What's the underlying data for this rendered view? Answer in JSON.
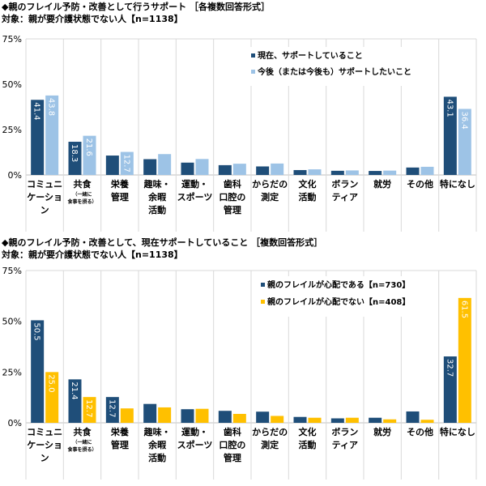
{
  "chart_data": [
    {
      "type": "bar",
      "title": "◆親のフレイル予防・改善として行うサポート ［各複数回答形式］",
      "subtitle": "対象：親が要介護状態でない人【n=1138】",
      "ylim": [
        0,
        75
      ],
      "yticks": [
        "0%",
        "25%",
        "50%",
        "75%"
      ],
      "grid": true,
      "legend_position": "top-center",
      "categories": [
        [
          "コミュニ",
          "ケーショ",
          "ン"
        ],
        [
          "共食"
        ],
        [
          "栄養",
          "管理"
        ],
        [
          "趣味・",
          "余暇",
          "活動"
        ],
        [
          "運動・",
          "スポーツ"
        ],
        [
          "歯科",
          "口腔の",
          "管理"
        ],
        [
          "からだの",
          "測定"
        ],
        [
          "文化",
          "活動"
        ],
        [
          "ボラン",
          "ティア"
        ],
        [
          "就労"
        ],
        [
          "その他"
        ],
        [
          "特になし"
        ]
      ],
      "category_notes": {
        "1": [
          "（一緒に",
          "食事を摂る）"
        ]
      },
      "series": [
        {
          "name": "現在、サポートしていること",
          "color": "#1f4e79",
          "label_color": "#ffffff",
          "values": [
            41.4,
            18.3,
            10.7,
            8.7,
            6.8,
            5.4,
            4.7,
            2.7,
            2.3,
            2.2,
            4.1,
            43.1
          ]
        },
        {
          "name": "今後（または今後も）サポートしたいこと",
          "color": "#9dc3e6",
          "label_color": "#ffffff",
          "values": [
            43.8,
            21.6,
            12.7,
            11.5,
            8.8,
            6.2,
            6.3,
            3.1,
            2.5,
            2.4,
            4.5,
            36.4
          ]
        }
      ]
    },
    {
      "type": "bar",
      "title": "◆親のフレイル予防・改善として、現在サポートしていること ［複数回答形式］",
      "subtitle": "対象：親が要介護状態でない人【n=1138】",
      "ylim": [
        0,
        75
      ],
      "yticks": [
        "0%",
        "25%",
        "50%",
        "75%"
      ],
      "grid": true,
      "legend_position": "top-center",
      "categories": [
        [
          "コミュニ",
          "ケーショ",
          "ン"
        ],
        [
          "共食"
        ],
        [
          "栄養",
          "管理"
        ],
        [
          "趣味・",
          "余暇",
          "活動"
        ],
        [
          "運動・",
          "スポーツ"
        ],
        [
          "歯科",
          "口腔の",
          "管理"
        ],
        [
          "からだの",
          "測定"
        ],
        [
          "文化",
          "活動"
        ],
        [
          "ボラン",
          "ティア"
        ],
        [
          "就労"
        ],
        [
          "その他"
        ],
        [
          "特になし"
        ]
      ],
      "category_notes": {
        "1": [
          "（一緒に",
          "食事を摂る）"
        ]
      },
      "series": [
        {
          "name": "親のフレイルが心配である【n=730】",
          "color": "#1f4e79",
          "label_color": "#ffffff",
          "values": [
            50.5,
            21.4,
            12.7,
            9.3,
            6.7,
            5.9,
            5.5,
            2.9,
            2.2,
            2.5,
            5.6,
            32.7
          ]
        },
        {
          "name": "親のフレイルが心配でない【n=408】",
          "color": "#ffc000",
          "label_color": "#000000",
          "values": [
            25.0,
            12.7,
            7.1,
            7.6,
            6.9,
            4.4,
            3.4,
            2.5,
            2.5,
            1.7,
            1.5,
            61.5
          ]
        }
      ]
    }
  ]
}
